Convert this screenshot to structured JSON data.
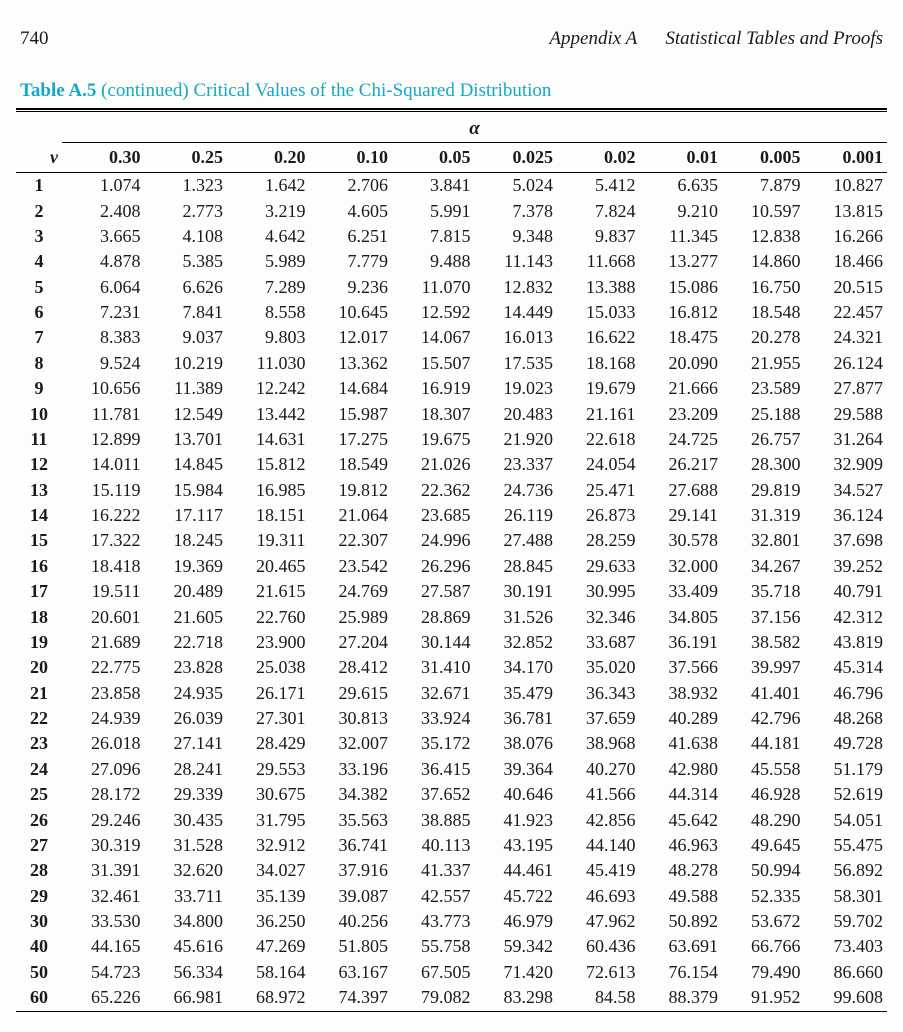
{
  "header": {
    "page_number": "740",
    "chapter_title": "Appendix A   Statistical Tables and Proofs"
  },
  "table": {
    "type": "table",
    "title_prefix": "Table A.5",
    "title_contd": " (continued) ",
    "title_rest": "Critical Values of the Chi-Squared Distribution",
    "alpha_symbol": "α",
    "v_symbol": "v",
    "columns": [
      "0.30",
      "0.25",
      "0.20",
      "0.10",
      "0.05",
      "0.025",
      "0.02",
      "0.01",
      "0.005",
      "0.001"
    ],
    "col_width_percent": 9.54,
    "colors": {
      "title_color": "#15a7c8",
      "text_color": "#1a1a1a",
      "background_color": "#fdfdfb",
      "rule_color": "#000000"
    },
    "fonts": {
      "body_pt": 18,
      "header_pt": 19,
      "family": "Times New Roman serif"
    },
    "groups": [
      {
        "rows": [
          {
            "v": "1",
            "cells": [
              "1.074",
              "1.323",
              "1.642",
              "2.706",
              "3.841",
              "5.024",
              "5.412",
              "6.635",
              "7.879",
              "10.827"
            ]
          },
          {
            "v": "2",
            "cells": [
              "2.408",
              "2.773",
              "3.219",
              "4.605",
              "5.991",
              "7.378",
              "7.824",
              "9.210",
              "10.597",
              "13.815"
            ]
          },
          {
            "v": "3",
            "cells": [
              "3.665",
              "4.108",
              "4.642",
              "6.251",
              "7.815",
              "9.348",
              "9.837",
              "11.345",
              "12.838",
              "16.266"
            ]
          },
          {
            "v": "4",
            "cells": [
              "4.878",
              "5.385",
              "5.989",
              "7.779",
              "9.488",
              "11.143",
              "11.668",
              "13.277",
              "14.860",
              "18.466"
            ]
          },
          {
            "v": "5",
            "cells": [
              "6.064",
              "6.626",
              "7.289",
              "9.236",
              "11.070",
              "12.832",
              "13.388",
              "15.086",
              "16.750",
              "20.515"
            ]
          }
        ]
      },
      {
        "rows": [
          {
            "v": "6",
            "cells": [
              "7.231",
              "7.841",
              "8.558",
              "10.645",
              "12.592",
              "14.449",
              "15.033",
              "16.812",
              "18.548",
              "22.457"
            ]
          },
          {
            "v": "7",
            "cells": [
              "8.383",
              "9.037",
              "9.803",
              "12.017",
              "14.067",
              "16.013",
              "16.622",
              "18.475",
              "20.278",
              "24.321"
            ]
          },
          {
            "v": "8",
            "cells": [
              "9.524",
              "10.219",
              "11.030",
              "13.362",
              "15.507",
              "17.535",
              "18.168",
              "20.090",
              "21.955",
              "26.124"
            ]
          },
          {
            "v": "9",
            "cells": [
              "10.656",
              "11.389",
              "12.242",
              "14.684",
              "16.919",
              "19.023",
              "19.679",
              "21.666",
              "23.589",
              "27.877"
            ]
          },
          {
            "v": "10",
            "cells": [
              "11.781",
              "12.549",
              "13.442",
              "15.987",
              "18.307",
              "20.483",
              "21.161",
              "23.209",
              "25.188",
              "29.588"
            ]
          }
        ]
      },
      {
        "rows": [
          {
            "v": "11",
            "cells": [
              "12.899",
              "13.701",
              "14.631",
              "17.275",
              "19.675",
              "21.920",
              "22.618",
              "24.725",
              "26.757",
              "31.264"
            ]
          },
          {
            "v": "12",
            "cells": [
              "14.011",
              "14.845",
              "15.812",
              "18.549",
              "21.026",
              "23.337",
              "24.054",
              "26.217",
              "28.300",
              "32.909"
            ]
          },
          {
            "v": "13",
            "cells": [
              "15.119",
              "15.984",
              "16.985",
              "19.812",
              "22.362",
              "24.736",
              "25.471",
              "27.688",
              "29.819",
              "34.527"
            ]
          },
          {
            "v": "14",
            "cells": [
              "16.222",
              "17.117",
              "18.151",
              "21.064",
              "23.685",
              "26.119",
              "26.873",
              "29.141",
              "31.319",
              "36.124"
            ]
          },
          {
            "v": "15",
            "cells": [
              "17.322",
              "18.245",
              "19.311",
              "22.307",
              "24.996",
              "27.488",
              "28.259",
              "30.578",
              "32.801",
              "37.698"
            ]
          }
        ]
      },
      {
        "rows": [
          {
            "v": "16",
            "cells": [
              "18.418",
              "19.369",
              "20.465",
              "23.542",
              "26.296",
              "28.845",
              "29.633",
              "32.000",
              "34.267",
              "39.252"
            ]
          },
          {
            "v": "17",
            "cells": [
              "19.511",
              "20.489",
              "21.615",
              "24.769",
              "27.587",
              "30.191",
              "30.995",
              "33.409",
              "35.718",
              "40.791"
            ]
          },
          {
            "v": "18",
            "cells": [
              "20.601",
              "21.605",
              "22.760",
              "25.989",
              "28.869",
              "31.526",
              "32.346",
              "34.805",
              "37.156",
              "42.312"
            ]
          },
          {
            "v": "19",
            "cells": [
              "21.689",
              "22.718",
              "23.900",
              "27.204",
              "30.144",
              "32.852",
              "33.687",
              "36.191",
              "38.582",
              "43.819"
            ]
          },
          {
            "v": "20",
            "cells": [
              "22.775",
              "23.828",
              "25.038",
              "28.412",
              "31.410",
              "34.170",
              "35.020",
              "37.566",
              "39.997",
              "45.314"
            ]
          }
        ]
      },
      {
        "rows": [
          {
            "v": "21",
            "cells": [
              "23.858",
              "24.935",
              "26.171",
              "29.615",
              "32.671",
              "35.479",
              "36.343",
              "38.932",
              "41.401",
              "46.796"
            ]
          },
          {
            "v": "22",
            "cells": [
              "24.939",
              "26.039",
              "27.301",
              "30.813",
              "33.924",
              "36.781",
              "37.659",
              "40.289",
              "42.796",
              "48.268"
            ]
          },
          {
            "v": "23",
            "cells": [
              "26.018",
              "27.141",
              "28.429",
              "32.007",
              "35.172",
              "38.076",
              "38.968",
              "41.638",
              "44.181",
              "49.728"
            ]
          },
          {
            "v": "24",
            "cells": [
              "27.096",
              "28.241",
              "29.553",
              "33.196",
              "36.415",
              "39.364",
              "40.270",
              "42.980",
              "45.558",
              "51.179"
            ]
          },
          {
            "v": "25",
            "cells": [
              "28.172",
              "29.339",
              "30.675",
              "34.382",
              "37.652",
              "40.646",
              "41.566",
              "44.314",
              "46.928",
              "52.619"
            ]
          }
        ]
      },
      {
        "rows": [
          {
            "v": "26",
            "cells": [
              "29.246",
              "30.435",
              "31.795",
              "35.563",
              "38.885",
              "41.923",
              "42.856",
              "45.642",
              "48.290",
              "54.051"
            ]
          },
          {
            "v": "27",
            "cells": [
              "30.319",
              "31.528",
              "32.912",
              "36.741",
              "40.113",
              "43.195",
              "44.140",
              "46.963",
              "49.645",
              "55.475"
            ]
          },
          {
            "v": "28",
            "cells": [
              "31.391",
              "32.620",
              "34.027",
              "37.916",
              "41.337",
              "44.461",
              "45.419",
              "48.278",
              "50.994",
              "56.892"
            ]
          },
          {
            "v": "29",
            "cells": [
              "32.461",
              "33.711",
              "35.139",
              "39.087",
              "42.557",
              "45.722",
              "46.693",
              "49.588",
              "52.335",
              "58.301"
            ]
          },
          {
            "v": "30",
            "cells": [
              "33.530",
              "34.800",
              "36.250",
              "40.256",
              "43.773",
              "46.979",
              "47.962",
              "50.892",
              "53.672",
              "59.702"
            ]
          }
        ]
      },
      {
        "rows": [
          {
            "v": "40",
            "cells": [
              "44.165",
              "45.616",
              "47.269",
              "51.805",
              "55.758",
              "59.342",
              "60.436",
              "63.691",
              "66.766",
              "73.403"
            ]
          },
          {
            "v": "50",
            "cells": [
              "54.723",
              "56.334",
              "58.164",
              "63.167",
              "67.505",
              "71.420",
              "72.613",
              "76.154",
              "79.490",
              "86.660"
            ]
          },
          {
            "v": "60",
            "cells": [
              "65.226",
              "66.981",
              "68.972",
              "74.397",
              "79.082",
              "83.298",
              "84.58",
              "88.379",
              "91.952",
              "99.608"
            ]
          }
        ]
      }
    ]
  }
}
